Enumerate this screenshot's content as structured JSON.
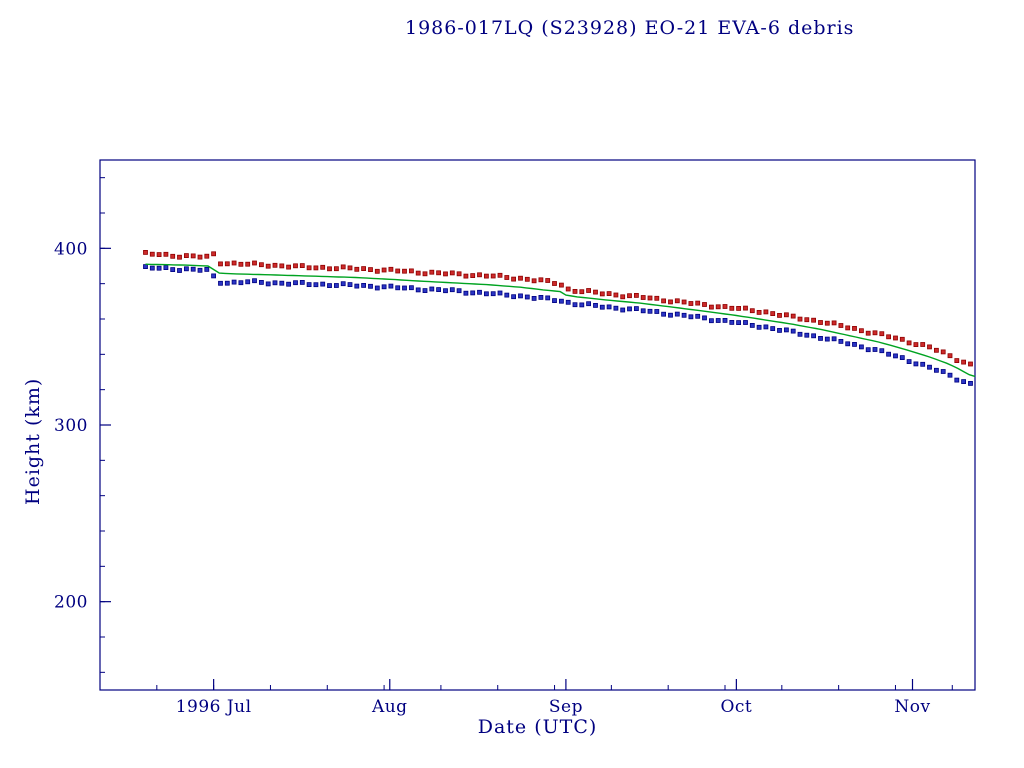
{
  "colors": {
    "axis": "#000080",
    "background": "#ffffff",
    "text": "#000080",
    "apogee": "#cc2a2a",
    "apogee_edge": "#8f0000",
    "perigee": "#2a35c4",
    "perigee_edge": "#000080",
    "mean": "#00a321"
  },
  "chart_data": {
    "type": "scatter",
    "title": "1986-017LQ (S23928) EO-21 EVA-6 debris",
    "xlabel": "Date (UTC)",
    "ylabel": "Height (km)",
    "x_unit": "days since 1996-06-01",
    "xlim": [
      10,
      164
    ],
    "ylim": [
      150,
      450
    ],
    "grid": false,
    "legend": "none",
    "x_ticks": [
      {
        "label": "1996 Jul",
        "value": 30
      },
      {
        "label": "Aug",
        "value": 61
      },
      {
        "label": "Sep",
        "value": 92
      },
      {
        "label": "Oct",
        "value": 122
      },
      {
        "label": "Nov",
        "value": 153
      }
    ],
    "y_ticks": [
      {
        "label": "200",
        "value": 200
      },
      {
        "label": "300",
        "value": 300
      },
      {
        "label": "400",
        "value": 400
      }
    ],
    "x_minor_step": 10,
    "y_minor_step": 20,
    "marker_size_px": 4,
    "point_interval_days": 1.2,
    "jitter_km": 0.9,
    "series": [
      {
        "name": "apogee height",
        "type": "points",
        "color_key": "apogee",
        "edge_key": "apogee_edge",
        "points": [
          [
            18,
            397
          ],
          [
            22,
            396
          ],
          [
            26,
            395.5
          ],
          [
            29,
            395
          ],
          [
            29.5,
            397
          ],
          [
            30.5,
            396
          ],
          [
            31,
            392
          ],
          [
            33,
            391.5
          ],
          [
            36,
            391
          ],
          [
            40,
            390.5
          ],
          [
            45,
            389.5
          ],
          [
            50,
            389
          ],
          [
            55,
            388.5
          ],
          [
            61,
            387.5
          ],
          [
            66,
            386.5
          ],
          [
            72,
            385.5
          ],
          [
            78,
            384.5
          ],
          [
            84,
            383
          ],
          [
            88,
            381.5
          ],
          [
            91,
            380
          ],
          [
            92,
            377
          ],
          [
            94,
            376
          ],
          [
            97,
            375
          ],
          [
            100,
            374
          ],
          [
            105,
            372.5
          ],
          [
            110,
            370.5
          ],
          [
            115,
            368.5
          ],
          [
            122,
            366
          ],
          [
            127,
            364
          ],
          [
            132,
            361
          ],
          [
            137,
            358.5
          ],
          [
            142,
            355
          ],
          [
            147,
            351.5
          ],
          [
            152,
            347.5
          ],
          [
            156,
            344
          ],
          [
            159,
            340
          ],
          [
            161,
            337
          ],
          [
            163,
            334.5
          ],
          [
            164,
            333
          ]
        ]
      },
      {
        "name": "perigee height",
        "type": "points",
        "color_key": "perigee",
        "edge_key": "perigee_edge",
        "points": [
          [
            18,
            389
          ],
          [
            22,
            388.5
          ],
          [
            26,
            388
          ],
          [
            29,
            387.5
          ],
          [
            30,
            384
          ],
          [
            31,
            381
          ],
          [
            33,
            380.5
          ],
          [
            36,
            381
          ],
          [
            40,
            380.5
          ],
          [
            45,
            380
          ],
          [
            50,
            379.5
          ],
          [
            55,
            379
          ],
          [
            61,
            378
          ],
          [
            66,
            377
          ],
          [
            72,
            376
          ],
          [
            78,
            374.5
          ],
          [
            84,
            373
          ],
          [
            88,
            371.5
          ],
          [
            91,
            370.5
          ],
          [
            92,
            369.5
          ],
          [
            94,
            368.5
          ],
          [
            97,
            367.5
          ],
          [
            100,
            366.5
          ],
          [
            105,
            365
          ],
          [
            110,
            363
          ],
          [
            115,
            361
          ],
          [
            122,
            358
          ],
          [
            127,
            355.5
          ],
          [
            132,
            352.5
          ],
          [
            137,
            349.5
          ],
          [
            142,
            346
          ],
          [
            147,
            342
          ],
          [
            152,
            337
          ],
          [
            156,
            332.5
          ],
          [
            159,
            329
          ],
          [
            161,
            326
          ],
          [
            163,
            323.5
          ],
          [
            164,
            322
          ]
        ]
      },
      {
        "name": "mean height",
        "type": "line",
        "color_key": "mean",
        "points": [
          [
            18,
            391
          ],
          [
            25,
            390.5
          ],
          [
            29,
            390
          ],
          [
            31,
            386
          ],
          [
            34,
            385.5
          ],
          [
            40,
            385
          ],
          [
            45,
            384.5
          ],
          [
            50,
            384
          ],
          [
            55,
            383.5
          ],
          [
            61,
            382.5
          ],
          [
            66,
            381.5
          ],
          [
            72,
            380.5
          ],
          [
            78,
            379.5
          ],
          [
            84,
            378
          ],
          [
            88,
            376.5
          ],
          [
            91,
            375.5
          ],
          [
            92,
            373.5
          ],
          [
            94,
            372.5
          ],
          [
            97,
            371.5
          ],
          [
            100,
            370.5
          ],
          [
            105,
            369
          ],
          [
            110,
            367
          ],
          [
            115,
            365
          ],
          [
            122,
            362
          ],
          [
            127,
            359.5
          ],
          [
            132,
            357
          ],
          [
            137,
            354
          ],
          [
            142,
            350.5
          ],
          [
            147,
            347
          ],
          [
            152,
            342.5
          ],
          [
            156,
            338.5
          ],
          [
            159,
            335
          ],
          [
            161,
            332
          ],
          [
            163,
            328.5
          ],
          [
            164,
            327.5
          ]
        ]
      }
    ]
  }
}
